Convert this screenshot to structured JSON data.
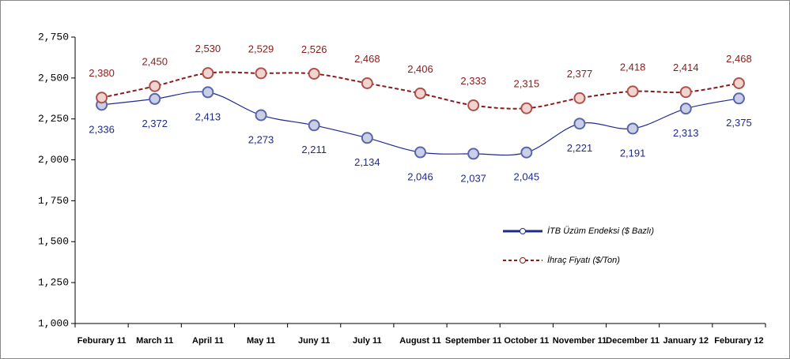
{
  "chart_data": {
    "type": "line",
    "categories": [
      "Feburary 11",
      "March 11",
      "April 11",
      "May 11",
      "Juny 11",
      "July 11",
      "August 11",
      "September 11",
      "October 11",
      "November 11",
      "December 11",
      "January 12",
      "Feburary 12"
    ],
    "series": [
      {
        "name": "İTB Üzüm Endeksi ($ Bazlı)",
        "color": "#1f2a8c",
        "values": [
          2336,
          2372,
          2413,
          2273,
          2211,
          2134,
          2046,
          2037,
          2045,
          2221,
          2191,
          2313,
          2375
        ],
        "value_labels": [
          "2,336",
          "2,372",
          "2,413",
          "2,273",
          "2,211",
          "2,134",
          "2,046",
          "2,037",
          "2,045",
          "2,221",
          "2,191",
          "2,313",
          "2,375"
        ]
      },
      {
        "name": "İhraç Fiyatı ($/Ton)",
        "color": "#8b1a1a",
        "values": [
          2380,
          2450,
          2530,
          2529,
          2526,
          2468,
          2406,
          2333,
          2315,
          2377,
          2418,
          2414,
          2468
        ],
        "value_labels": [
          "2,380",
          "2,450",
          "2,530",
          "2,529",
          "2,526",
          "2,468",
          "2,406",
          "2,333",
          "2,315",
          "2,377",
          "2,418",
          "2,414",
          "2,468"
        ]
      }
    ],
    "ylim": [
      1000,
      2750
    ],
    "yticks": [
      {
        "value": 1000,
        "label": "1,000"
      },
      {
        "value": 1250,
        "label": "1,250"
      },
      {
        "value": 1500,
        "label": "1,500"
      },
      {
        "value": 1750,
        "label": "1,750"
      },
      {
        "value": 2000,
        "label": "2,000"
      },
      {
        "value": 2250,
        "label": "2,250"
      },
      {
        "value": 2500,
        "label": "2,500"
      },
      {
        "value": 2750,
        "label": "2,750"
      }
    ],
    "grid": false
  }
}
